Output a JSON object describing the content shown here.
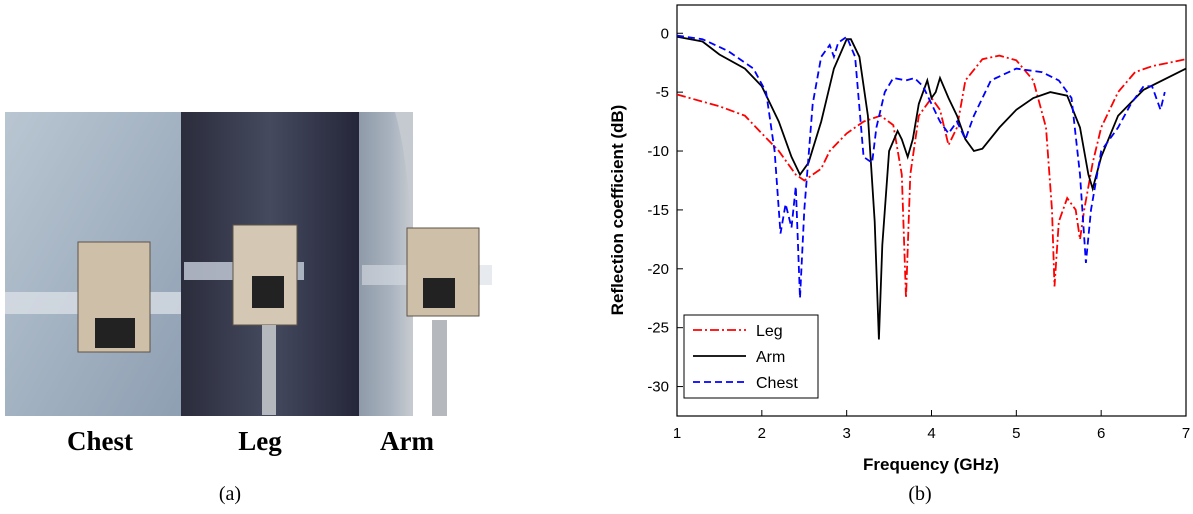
{
  "figure": {
    "photo_labels": [
      "Chest",
      "Leg",
      "Arm"
    ],
    "panel_a": "(a)",
    "panel_b": "(b)"
  },
  "chart_data": {
    "type": "line",
    "xlabel": "Frequency (GHz)",
    "ylabel": "Reflection coefficient (dB)",
    "xlim": [
      1,
      7
    ],
    "ylim": [
      -32.5,
      2.4
    ],
    "xticks": [
      1,
      2,
      3,
      4,
      5,
      6,
      7
    ],
    "yticks": [
      0,
      -5,
      -10,
      -15,
      -20,
      -25,
      -30
    ],
    "legend": "lower left",
    "series": [
      {
        "name": "Leg",
        "color": "#ff0000",
        "line_style": "dash-dot",
        "x": [
          1,
          1.5,
          1.8,
          2.0,
          2.2,
          2.4,
          2.5,
          2.7,
          2.8,
          3.0,
          3.2,
          3.4,
          3.55,
          3.65,
          3.7,
          3.75,
          3.85,
          4.0,
          4.1,
          4.2,
          4.3,
          4.4,
          4.6,
          4.8,
          5.0,
          5.2,
          5.35,
          5.42,
          5.45,
          5.5,
          5.6,
          5.7,
          5.75,
          5.8,
          5.9,
          6.0,
          6.2,
          6.4,
          6.6,
          7.0
        ],
        "values": [
          -5.2,
          -6.2,
          -7,
          -8.5,
          -10,
          -12,
          -12.5,
          -11.5,
          -10,
          -8.5,
          -7.5,
          -7,
          -7.8,
          -12,
          -22.5,
          -12,
          -7,
          -5.5,
          -6.5,
          -9.5,
          -8,
          -4,
          -2.2,
          -1.9,
          -2.3,
          -4,
          -8,
          -15,
          -21.5,
          -16,
          -14,
          -15,
          -17.5,
          -15,
          -11,
          -8,
          -5,
          -3.3,
          -2.8,
          -2.2
        ]
      },
      {
        "name": "Arm",
        "color": "#000000",
        "line_style": "solid",
        "x": [
          1,
          1.3,
          1.5,
          1.8,
          2.0,
          2.2,
          2.35,
          2.45,
          2.55,
          2.7,
          2.85,
          3.0,
          3.05,
          3.15,
          3.25,
          3.33,
          3.38,
          3.42,
          3.5,
          3.6,
          3.65,
          3.72,
          3.78,
          3.85,
          3.95,
          4.0,
          4.05,
          4.1,
          4.2,
          4.3,
          4.4,
          4.5,
          4.6,
          4.8,
          5.0,
          5.2,
          5.4,
          5.6,
          5.75,
          5.85,
          5.9,
          6.0,
          6.2,
          6.5,
          7.0
        ],
        "values": [
          -0.3,
          -0.7,
          -1.8,
          -3,
          -4.5,
          -7.5,
          -10.5,
          -12,
          -11,
          -7.5,
          -3,
          -0.5,
          -0.5,
          -2,
          -7,
          -16,
          -26,
          -18,
          -10,
          -8.3,
          -9,
          -10.5,
          -9,
          -6,
          -4,
          -5.5,
          -5,
          -3.8,
          -5.5,
          -7,
          -9,
          -10,
          -9.8,
          -8,
          -6.5,
          -5.5,
          -5,
          -5.3,
          -8,
          -12,
          -13.2,
          -10.5,
          -7,
          -4.8,
          -3
        ]
      },
      {
        "name": "Chest",
        "color": "#0000ff",
        "line_style": "dashed",
        "x": [
          1,
          1.3,
          1.6,
          1.9,
          2.05,
          2.15,
          2.22,
          2.28,
          2.35,
          2.4,
          2.45,
          2.5,
          2.6,
          2.7,
          2.8,
          2.85,
          2.9,
          3.0,
          3.1,
          3.2,
          3.3,
          3.35,
          3.45,
          3.55,
          3.7,
          3.8,
          3.9,
          4.0,
          4.1,
          4.2,
          4.3,
          4.4,
          4.5,
          4.7,
          5.0,
          5.3,
          5.5,
          5.65,
          5.75,
          5.82,
          5.88,
          6.0,
          6.2,
          6.35,
          6.5,
          6.6,
          6.7,
          6.75
        ],
        "values": [
          -0.2,
          -0.5,
          -1.5,
          -3,
          -5,
          -10,
          -17,
          -14.5,
          -16.5,
          -13,
          -22.5,
          -15,
          -6,
          -2,
          -1,
          -2,
          -0.8,
          -0.3,
          -2,
          -10.5,
          -11,
          -8,
          -5,
          -3.8,
          -4,
          -3.8,
          -4.5,
          -6,
          -7.5,
          -8.5,
          -7.5,
          -9,
          -7,
          -4,
          -3,
          -3.3,
          -4,
          -5.5,
          -12,
          -19.5,
          -15,
          -10,
          -8,
          -6,
          -4.5,
          -4.5,
          -6.5,
          -5
        ]
      }
    ]
  }
}
